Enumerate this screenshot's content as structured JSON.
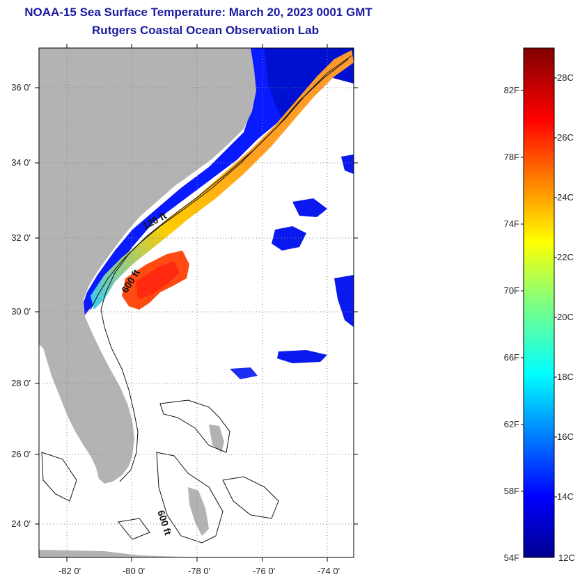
{
  "title": {
    "line1": "NOAA-15 Sea Surface Temperature:  March 20, 2023 0001 GMT",
    "line2": "Rutgers Coastal Ocean Observation Lab"
  },
  "map": {
    "lat_ticks": [
      "36 0'",
      "34 0'",
      "32 0'",
      "30 0'",
      "28 0'",
      "26 0'",
      "24 0'"
    ],
    "lon_ticks": [
      "-82 0'",
      "-80 0'",
      "-78 0'",
      "-76 0'",
      "-74 0'"
    ],
    "isobaths": [
      "120 ft",
      "600 ft",
      "600 ft"
    ],
    "colors": {
      "land": "#b3b3b3",
      "ocean": "#ffffff",
      "grid": "#888888"
    }
  },
  "colorbar": {
    "fahrenheit_labels": [
      "82F",
      "78F",
      "74F",
      "70F",
      "66F",
      "62F",
      "58F",
      "54F"
    ],
    "celsius_labels": [
      "28C",
      "26C",
      "24C",
      "22C",
      "20C",
      "18C",
      "16C",
      "14C",
      "12C"
    ],
    "min_c": 12,
    "max_c": 29
  }
}
